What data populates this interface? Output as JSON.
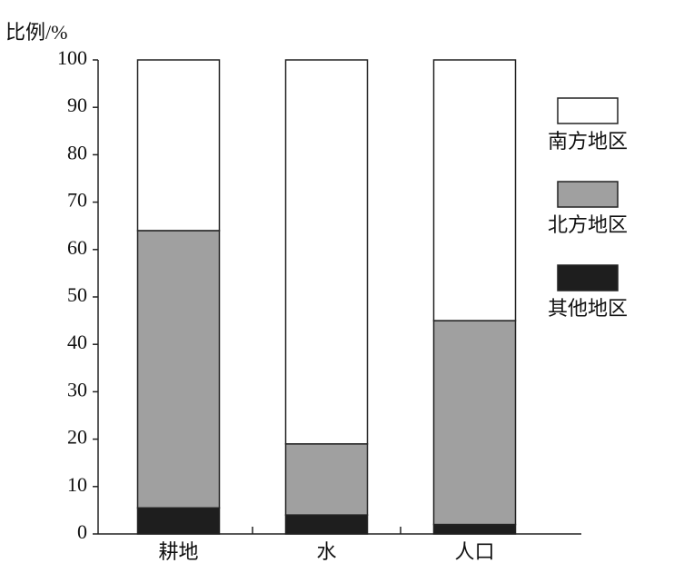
{
  "chart_data": {
    "type": "stacked_bar",
    "y_label": "比例/%",
    "categories": [
      "耕地",
      "水",
      "人口"
    ],
    "series": [
      {
        "name": "其他地区",
        "color": "#1e1e1e",
        "values": [
          5.5,
          4,
          2
        ]
      },
      {
        "name": "北方地区",
        "color": "#a0a0a0",
        "values": [
          58.5,
          15,
          43
        ]
      },
      {
        "name": "南方地区",
        "color": "#ffffff",
        "values": [
          36,
          81,
          55
        ]
      }
    ],
    "ylim": [
      0,
      100
    ],
    "yticks": [
      0,
      10,
      20,
      30,
      40,
      50,
      60,
      70,
      80,
      90,
      100
    ]
  }
}
